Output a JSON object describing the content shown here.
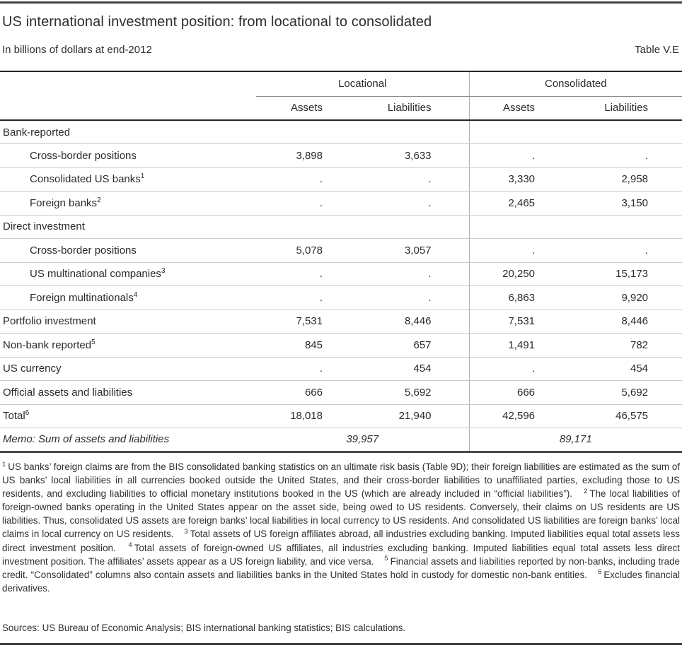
{
  "header": {
    "title": "US international investment position: from locational to consolidated",
    "subtitle": "In billions of dollars at end-2012",
    "table_label": "Table V.E"
  },
  "table": {
    "group_headers": [
      "Locational",
      "Consolidated"
    ],
    "column_headers": [
      "Assets",
      "Liabilities",
      "Assets",
      "Liabilities"
    ],
    "rows": [
      {
        "label": "Bank-reported",
        "indent": false,
        "values": [
          "",
          "",
          "",
          ""
        ]
      },
      {
        "label": "Cross-border positions",
        "indent": true,
        "values": [
          "3,898",
          "3,633",
          ".",
          "."
        ]
      },
      {
        "label": "Consolidated US banks",
        "sup": "1",
        "indent": true,
        "values": [
          ".",
          ".",
          "3,330",
          "2,958"
        ]
      },
      {
        "label": "Foreign banks",
        "sup": "2",
        "indent": true,
        "values": [
          ".",
          ".",
          "2,465",
          "3,150"
        ]
      },
      {
        "label": "Direct investment",
        "indent": false,
        "values": [
          "",
          "",
          "",
          ""
        ]
      },
      {
        "label": "Cross-border positions",
        "indent": true,
        "values": [
          "5,078",
          "3,057",
          ".",
          "."
        ]
      },
      {
        "label": "US multinational companies",
        "sup": "3",
        "indent": true,
        "values": [
          ".",
          ".",
          "20,250",
          "15,173"
        ]
      },
      {
        "label": "Foreign multinationals",
        "sup": "4",
        "indent": true,
        "values": [
          ".",
          ".",
          "6,863",
          "9,920"
        ]
      },
      {
        "label": "Portfolio investment",
        "indent": false,
        "values": [
          "7,531",
          "8,446",
          "7,531",
          "8,446"
        ]
      },
      {
        "label": "Non-bank reported",
        "sup": "5",
        "indent": false,
        "values": [
          "845",
          "657",
          "1,491",
          "782"
        ]
      },
      {
        "label": "US currency",
        "indent": false,
        "values": [
          ".",
          "454",
          ".",
          "454"
        ]
      },
      {
        "label": "Official assets and liabilities",
        "indent": false,
        "values": [
          "666",
          "5,692",
          "666",
          "5,692"
        ]
      },
      {
        "label": "Total",
        "sup": "6",
        "indent": false,
        "values": [
          "18,018",
          "21,940",
          "42,596",
          "46,575"
        ]
      },
      {
        "label": "Memo: Sum of assets and liabilities",
        "indent": false,
        "memo": true,
        "memo_values": [
          "39,957",
          "89,171"
        ]
      }
    ]
  },
  "footnotes": [
    {
      "marker": "1",
      "text": "US banks’ foreign claims are from the BIS consolidated banking statistics on an ultimate risk basis (Table 9D); their foreign liabilities are estimated as the sum of US banks’ local liabilities in all currencies booked outside the United States, and their cross-border liabilities to unaffiliated parties, excluding those to US residents, and excluding liabilities to official monetary institutions booked in the US (which are already included in “official liabilities”)."
    },
    {
      "marker": "2",
      "text": "The local liabilities of foreign-owned banks operating in the United States appear on the asset side, being owed to US residents. Conversely, their claims on US residents are US liabilities. Thus, consolidated US assets are foreign banks’ local liabilities in local currency to US residents. And consolidated US liabilities are foreign banks’ local claims in local currency on US residents."
    },
    {
      "marker": "3",
      "text": "Total assets of US foreign affiliates abroad, all industries excluding banking. Imputed liabilities equal total assets less direct investment position."
    },
    {
      "marker": "4",
      "text": "Total assets of foreign-owned US affiliates, all industries excluding banking. Imputed liabilities equal total assets less direct investment position. The affiliates’ assets appear as a US foreign liability, and vice versa."
    },
    {
      "marker": "5",
      "text": "Financial assets and liabilities reported by non-banks, including trade credit. “Consolidated” columns also contain assets and liabilities banks in the United States hold in custody for domestic non-bank entities."
    },
    {
      "marker": "6",
      "text": "Excludes financial derivatives."
    }
  ],
  "sources": "Sources: US Bureau of Economic Analysis; BIS international banking statistics; BIS calculations.",
  "colors": {
    "text": "#2b2b2b",
    "rule_dark": "#404040",
    "rule_black": "#262626",
    "row_separator": "#c9c9c9",
    "column_divider": "#b0b0b0"
  }
}
